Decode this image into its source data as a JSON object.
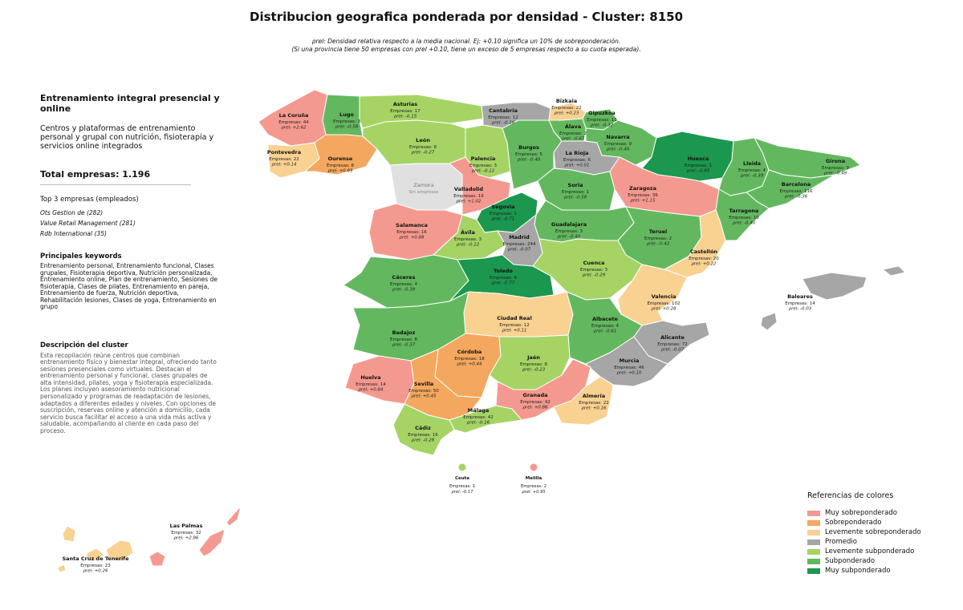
{
  "title": "Distribucion geografica ponderada por densidad - Cluster: 8150",
  "subtitle_line1": "ρrel: Densidad relativa respecto a la media nacional. Ej: +0.10 significa un 10% de sobreponderación.",
  "subtitle_line2": "(Si una provincia tiene 50 empresas con ρrel +0.10, tiene un exceso de 5 empresas respecto a su cuota esperada).",
  "sidebar": {
    "heading": "Entrenamiento integral presencial y online",
    "description": "Centros y plataformas de entrenamiento personal y grupal con nutrición, fisioterapia y servicios online integrados",
    "total": "Total empresas: 1.196",
    "top3_title": "Top 3 empresas (empleados)",
    "top3": [
      "Ots Gestion de (282)",
      "Value Retail Management (281)",
      "Rdb International (35)"
    ],
    "keywords_title": "Principales keywords",
    "keywords": "Entrenamiento personal, Entrenamiento funcional, Clases grupales, Fisioterapia deportiva, Nutrición personalizada, Entrenamiento online, Plan de entrenamiento, Sesiones de fisioterapia, Clases de pilates, Entrenamiento en pareja, Entrenamiento de fuerza, Nutrición deportiva, Rehabilitación lesiones, Clases de yoga, Entrenamiento en grupo",
    "cluster_desc_title": "Descripción del cluster",
    "cluster_desc": "Esta recopilación reúne centros que combinan entrenamiento físico y bienestar integral, ofreciendo tanto sesiones presenciales como virtuales. Destacan el entrenamiento personal y funcional, clases grupales de alta intensidad, pilates, yoga y fisioterapia especializada. Los planes incluyen asesoramiento nutricional personalizado y programas de readaptación de lesiones, adaptados a diferentes edades y niveles. Con opciones de suscripción, reservas online y atención a domicilio, cada servicio busca facilitar el acceso a una vida más activa y saludable, acompañando al cliente en cada paso del proceso."
  },
  "colors": {
    "muy_sobre": "#f4998f",
    "sobre": "#f4a75e",
    "lev_sobre": "#f9d191",
    "promedio": "#a6a6a6",
    "lev_sub": "#a5d465",
    "sub": "#63b85f",
    "muy_sub": "#1b974f",
    "nodata": "#e0e0e0"
  },
  "legend": {
    "title": "Referencias de colores",
    "items": [
      {
        "label": "Muy sobreponderado",
        "color": "#f4998f"
      },
      {
        "label": "Sobreponderado",
        "color": "#f4a75e"
      },
      {
        "label": "Levemente sobreponderado",
        "color": "#f9d191"
      },
      {
        "label": "Promedio",
        "color": "#a6a6a6"
      },
      {
        "label": "Levemente subponderado",
        "color": "#a5d465"
      },
      {
        "label": "Subponderado",
        "color": "#63b85f"
      },
      {
        "label": "Muy subponderado",
        "color": "#1b974f"
      }
    ]
  },
  "empresas_prefix": "Empresas: ",
  "rho_prefix": "ρrel: ",
  "provinces": [
    {
      "name": "La Coruña",
      "empresas": "44",
      "rho": "+2.62",
      "cat": "muy_sobre"
    },
    {
      "name": "Lugo",
      "empresas": "3",
      "rho": "-0.58",
      "cat": "sub"
    },
    {
      "name": "Asturias",
      "empresas": "17",
      "rho": "-0.15",
      "cat": "lev_sub"
    },
    {
      "name": "Cantabria",
      "empresas": "12",
      "rho": "-0.10",
      "cat": "promedio"
    },
    {
      "name": "Bizkaia",
      "empresas": "22",
      "rho": "+0.23",
      "cat": "lev_sobre"
    },
    {
      "name": "Gipuzkoa",
      "empresas": "11",
      "rho": "-0.32",
      "cat": "sub"
    },
    {
      "name": "Álava",
      "empresas": "2",
      "rho": "-0.67",
      "cat": "sub"
    },
    {
      "name": "Navarra",
      "empresas": "9",
      "rho": "-0.40",
      "cat": "sub"
    },
    {
      "name": "Pontevedra",
      "empresas": "22",
      "rho": "+0.14",
      "cat": "lev_sobre"
    },
    {
      "name": "Ourense",
      "empresas": "8",
      "rho": "+0.69",
      "cat": "sobre"
    },
    {
      "name": "León",
      "empresas": "8",
      "rho": "-0.27",
      "cat": "lev_sub"
    },
    {
      "name": "Palencia",
      "empresas": "3",
      "rho": "-0.12",
      "cat": "lev_sub"
    },
    {
      "name": "Burgos",
      "empresas": "5",
      "rho": "-0.40",
      "cat": "sub"
    },
    {
      "name": "La Rioja",
      "empresas": "6",
      "rho": "+0.01",
      "cat": "promedio"
    },
    {
      "name": "Huesca",
      "empresas": "1",
      "rho": "-0.85",
      "cat": "muy_sub"
    },
    {
      "name": "Lleida",
      "empresas": "4",
      "rho": "-0.39",
      "cat": "sub"
    },
    {
      "name": "Girona",
      "empresas": "9",
      "rho": "-0.49",
      "cat": "sub"
    },
    {
      "name": "Barcelona",
      "empresas": "116",
      "rho": "-0.36",
      "cat": "sub"
    },
    {
      "name": "Zamora",
      "empresas": "",
      "rho": "",
      "note": "Sin empresas",
      "cat": "nodata"
    },
    {
      "name": "Valladolid",
      "empresas": "19",
      "rho": "+1.02",
      "cat": "muy_sobre"
    },
    {
      "name": "Soria",
      "empresas": "1",
      "rho": "-0.56",
      "cat": "sub"
    },
    {
      "name": "Zaragoza",
      "empresas": "36",
      "rho": "+1.15",
      "cat": "muy_sobre"
    },
    {
      "name": "Tarragona",
      "empresas": "10",
      "rho": "-0.40",
      "cat": "sub"
    },
    {
      "name": "Segovia",
      "empresas": "1",
      "rho": "-0.71",
      "cat": "muy_sub"
    },
    {
      "name": "Salamanca",
      "empresas": "16",
      "rho": "+0.88",
      "cat": "muy_sobre"
    },
    {
      "name": "Guadalajara",
      "empresas": "3",
      "rho": "-0.40",
      "cat": "sub"
    },
    {
      "name": "Ávila",
      "empresas": "3",
      "rho": "-0.12",
      "cat": "lev_sub"
    },
    {
      "name": "Madrid",
      "empresas": "244",
      "rho": "-0.07",
      "cat": "promedio"
    },
    {
      "name": "Teruel",
      "empresas": "2",
      "rho": "-0.42",
      "cat": "sub"
    },
    {
      "name": "Castellón",
      "empresas": "20",
      "rho": "+0.22",
      "cat": "lev_sobre"
    },
    {
      "name": "Cáceres",
      "empresas": "4",
      "rho": "-0.39",
      "cat": "sub"
    },
    {
      "name": "Toledo",
      "empresas": "4",
      "rho": "-0.77",
      "cat": "muy_sub"
    },
    {
      "name": "Cuenca",
      "empresas": "3",
      "rho": "-0.29",
      "cat": "lev_sub"
    },
    {
      "name": "Valencia",
      "empresas": "102",
      "rho": "+0.28",
      "cat": "lev_sobre"
    },
    {
      "name": "Baleares",
      "empresas": "14",
      "rho": "-0.03",
      "cat": "promedio"
    },
    {
      "name": "Ciudad Real",
      "empresas": "12",
      "rho": "+0.11",
      "cat": "lev_sobre"
    },
    {
      "name": "Badajoz",
      "empresas": "8",
      "rho": "-0.37",
      "cat": "sub"
    },
    {
      "name": "Albacete",
      "empresas": "4",
      "rho": "-0.61",
      "cat": "sub"
    },
    {
      "name": "Alicante",
      "empresas": "72",
      "rho": "-0.07",
      "cat": "promedio"
    },
    {
      "name": "Córdoba",
      "empresas": "18",
      "rho": "+0.44",
      "cat": "sobre"
    },
    {
      "name": "Jaén",
      "empresas": "8",
      "rho": "-0.23",
      "cat": "lev_sub"
    },
    {
      "name": "Murcia",
      "empresas": "46",
      "rho": "+0.10",
      "cat": "promedio"
    },
    {
      "name": "Huelva",
      "empresas": "14",
      "rho": "+0.84",
      "cat": "muy_sobre"
    },
    {
      "name": "Sevilla",
      "empresas": "50",
      "rho": "+0.45",
      "cat": "sobre"
    },
    {
      "name": "Granada",
      "empresas": "42",
      "rho": "+0.86",
      "cat": "muy_sobre"
    },
    {
      "name": "Almería",
      "empresas": "22",
      "rho": "+0.16",
      "cat": "lev_sobre"
    },
    {
      "name": "Málaga",
      "empresas": "42",
      "rho": "-0.16",
      "cat": "lev_sub"
    },
    {
      "name": "Cádiz",
      "empresas": "16",
      "rho": "-0.28",
      "cat": "lev_sub"
    },
    {
      "name": "Ceuta",
      "empresas": "1",
      "rho": "-0.17",
      "cat": "lev_sub"
    },
    {
      "name": "Melilla",
      "empresas": "2",
      "rho": "+0.95",
      "cat": "muy_sobre"
    },
    {
      "name": "Las Palmas",
      "empresas": "32",
      "rho": "+2.86",
      "cat": "muy_sobre"
    },
    {
      "name": "Santa Cruz de Tenerife",
      "empresas": "23",
      "rho": "+0.26",
      "cat": "lev_sobre"
    }
  ]
}
